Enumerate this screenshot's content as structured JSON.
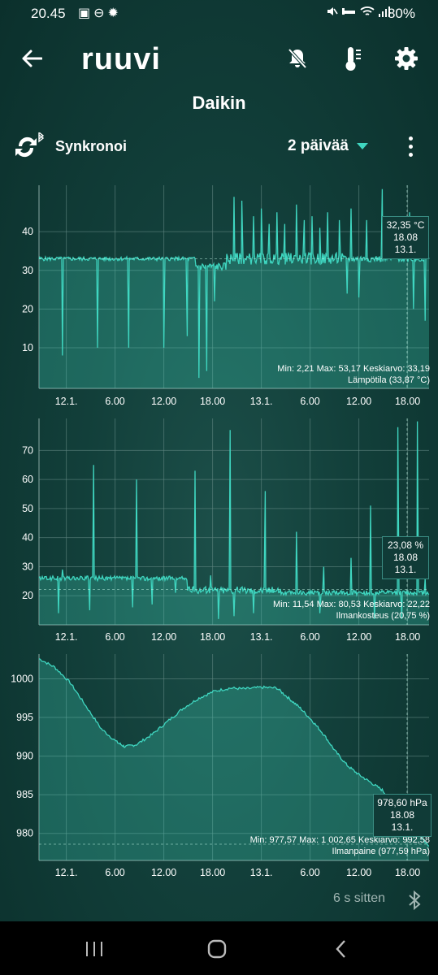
{
  "status_bar": {
    "time": "20.45",
    "left_icons": [
      "picture-icon",
      "minus-circle-icon",
      "gear-outline-icon"
    ],
    "right_icons": [
      "mute-icon",
      "do-not-disturb-icon",
      "wifi-icon",
      "signal-icon"
    ],
    "battery": "80%"
  },
  "topbar": {
    "logo": "ruuvi",
    "icons": [
      "back-arrow-icon",
      "bell-off-icon",
      "thermometer-icon",
      "settings-gear-icon"
    ]
  },
  "sensor_name": "Daikin",
  "sync": {
    "label": "Synkronoi"
  },
  "period": {
    "label": "2 päivää"
  },
  "accent": "#3fd6c0",
  "charts": [
    {
      "name": "temperature",
      "chart_data": {
        "type": "line",
        "y_ticks": [
          "10",
          "20",
          "30",
          "40"
        ],
        "y_values": [
          10,
          20,
          30,
          40
        ],
        "ylim": [
          -0.5,
          52
        ],
        "x_ticks": [
          "12.1.",
          "6.00",
          "12.00",
          "18.00",
          "13.1.",
          "6.00",
          "12.00",
          "18.00"
        ],
        "stats": "Min: 2,21 Max: 53,17 Keskiarvo: 33,19",
        "legend": "Lämpötila (33,87 °C)",
        "marker": [
          "32,35 °C",
          "18.08",
          "13.1."
        ],
        "baseline": 33,
        "segments": [
          {
            "from": 0,
            "to": 0.4,
            "level": 33,
            "noise": 0.5,
            "dips": [
              [
                0.06,
                8
              ],
              [
                0.15,
                10
              ],
              [
                0.23,
                10
              ],
              [
                0.32,
                10
              ],
              [
                0.38,
                13
              ]
            ]
          },
          {
            "from": 0.4,
            "to": 0.48,
            "level": 31,
            "noise": 1.0,
            "dips": [
              [
                0.41,
                2.2
              ],
              [
                0.43,
                4
              ],
              [
                0.45,
                22
              ]
            ]
          },
          {
            "from": 0.48,
            "to": 0.78,
            "level": 33,
            "noise": 1.5,
            "spikes": [
              [
                0.5,
                49
              ],
              [
                0.52,
                48
              ],
              [
                0.55,
                44
              ],
              [
                0.57,
                46
              ],
              [
                0.59,
                42
              ],
              [
                0.61,
                45
              ],
              [
                0.63,
                42
              ],
              [
                0.66,
                47
              ],
              [
                0.68,
                43
              ],
              [
                0.7,
                44
              ],
              [
                0.72,
                41
              ],
              [
                0.74,
                45
              ],
              [
                0.77,
                43
              ]
            ]
          },
          {
            "from": 0.78,
            "to": 1.0,
            "level": 33,
            "noise": 0.8,
            "spikes": [
              [
                0.8,
                46
              ],
              [
                0.84,
                43
              ],
              [
                0.88,
                51
              ],
              [
                0.91,
                43
              ],
              [
                0.95,
                45
              ]
            ],
            "dips": [
              [
                0.79,
                24
              ],
              [
                0.82,
                23
              ],
              [
                0.96,
                20
              ],
              [
                0.99,
                17
              ]
            ]
          }
        ]
      }
    },
    {
      "name": "humidity",
      "chart_data": {
        "type": "line",
        "y_ticks": [
          "20",
          "30",
          "40",
          "50",
          "60",
          "70"
        ],
        "y_values": [
          20,
          30,
          40,
          50,
          60,
          70
        ],
        "ylim": [
          10,
          81
        ],
        "x_ticks": [
          "12.1.",
          "6.00",
          "12.00",
          "18.00",
          "13.1.",
          "6.00",
          "12.00",
          "18.00"
        ],
        "stats": "Min: 11,54 Max: 80,53 Keskiarvo: 22,22",
        "legend": "Ilmankosteus (20,75 %)",
        "marker": [
          "23,08 %",
          "18.08",
          "13.1."
        ],
        "baseline": 22.2,
        "segments": [
          {
            "from": 0,
            "to": 0.38,
            "level": 26,
            "noise": 0.8,
            "spikes": [
              [
                0.06,
                29
              ],
              [
                0.14,
                65
              ],
              [
                0.25,
                60
              ],
              [
                0.3,
                26
              ],
              [
                0.35,
                21
              ]
            ],
            "dips": [
              [
                0.05,
                14
              ],
              [
                0.13,
                15
              ],
              [
                0.24,
                16
              ],
              [
                0.29,
                17
              ]
            ]
          },
          {
            "from": 0.38,
            "to": 0.62,
            "level": 22,
            "noise": 1.2,
            "spikes": [
              [
                0.4,
                63
              ],
              [
                0.44,
                27
              ],
              [
                0.49,
                77
              ],
              [
                0.58,
                56
              ],
              [
                0.66,
                42
              ],
              [
                0.73,
                30
              ]
            ],
            "dips": [
              [
                0.46,
                12
              ],
              [
                0.5,
                13
              ],
              [
                0.55,
                14
              ]
            ]
          },
          {
            "from": 0.62,
            "to": 1.0,
            "level": 21,
            "noise": 0.8,
            "spikes": [
              [
                0.8,
                33
              ],
              [
                0.85,
                51
              ],
              [
                0.92,
                78
              ],
              [
                0.97,
                80
              ],
              [
                0.99,
                26
              ]
            ],
            "dips": [
              [
                0.72,
                14
              ],
              [
                0.86,
                12
              ],
              [
                0.93,
                12
              ]
            ]
          }
        ]
      }
    },
    {
      "name": "pressure",
      "chart_data": {
        "type": "area",
        "y_ticks": [
          "980",
          "985",
          "990",
          "995",
          "1000"
        ],
        "y_values": [
          980,
          985,
          990,
          995,
          1000
        ],
        "ylim": [
          976.5,
          1003.2
        ],
        "x_ticks": [
          "12.1.",
          "6.00",
          "12.00",
          "18.00",
          "13.1.",
          "6.00",
          "12.00",
          "18.00"
        ],
        "stats": "Min: 977,57 Max: 1 002,65 Keskiarvo: 992,58",
        "legend": "Ilmanpaine (977,59 hPa)",
        "marker": [
          "978,60 hPa",
          "18.08",
          "13.1."
        ],
        "baseline": 978.6,
        "points": [
          [
            0,
            1002.6
          ],
          [
            0.04,
            1001.5
          ],
          [
            0.08,
            999.5
          ],
          [
            0.12,
            996.5
          ],
          [
            0.16,
            993.5
          ],
          [
            0.2,
            991.8
          ],
          [
            0.22,
            991.2
          ],
          [
            0.25,
            991.5
          ],
          [
            0.29,
            992.8
          ],
          [
            0.33,
            994.5
          ],
          [
            0.37,
            996.2
          ],
          [
            0.41,
            997.5
          ],
          [
            0.45,
            998.4
          ],
          [
            0.49,
            998.8
          ],
          [
            0.53,
            998.7
          ],
          [
            0.57,
            998.9
          ],
          [
            0.61,
            998.8
          ],
          [
            0.64,
            997.5
          ],
          [
            0.67,
            996.2
          ],
          [
            0.7,
            994.6
          ],
          [
            0.73,
            992.8
          ],
          [
            0.76,
            990.6
          ],
          [
            0.79,
            988.8
          ],
          [
            0.82,
            987.6
          ],
          [
            0.85,
            986.6
          ],
          [
            0.88,
            985.6
          ],
          [
            0.91,
            983.7
          ],
          [
            0.94,
            981.8
          ],
          [
            0.97,
            980.0
          ],
          [
            1.0,
            978.4
          ]
        ]
      }
    }
  ],
  "last_update": "6 s sitten",
  "navbar": {
    "icons": [
      "recent-apps-icon",
      "home-icon",
      "back-icon"
    ]
  }
}
